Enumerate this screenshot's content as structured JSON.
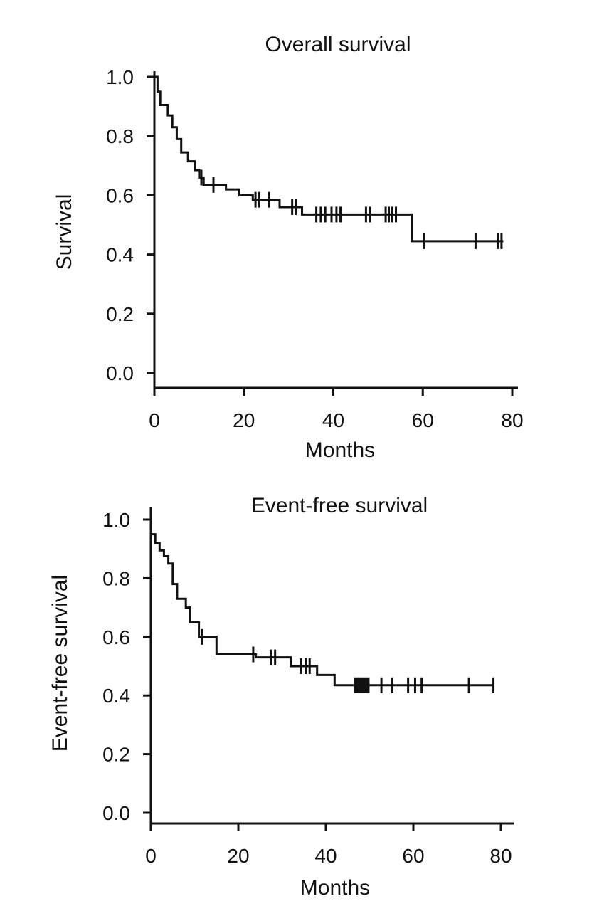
{
  "chart_data": [
    {
      "type": "line",
      "title": "Overall survival",
      "xlabel": "Months",
      "ylabel": "Survival",
      "xlim": [
        0,
        80
      ],
      "ylim": [
        0,
        1.0
      ],
      "xticks": [
        "0",
        "20",
        "40",
        "60",
        "80"
      ],
      "yticks": [
        "0.0",
        "0.2",
        "0.4",
        "0.6",
        "0.8",
        "1.0"
      ],
      "grid": false,
      "series": [
        {
          "name": "Overall survival",
          "step_times": [
            0,
            0.7,
            1.3,
            3,
            4,
            5,
            6,
            7.5,
            9,
            10,
            11,
            16,
            19,
            22,
            28,
            33,
            57.5,
            78
          ],
          "step_values": [
            1.0,
            0.95,
            0.905,
            0.87,
            0.83,
            0.79,
            0.745,
            0.715,
            0.685,
            0.66,
            0.635,
            0.62,
            0.6,
            0.585,
            0.56,
            0.535,
            0.445,
            0.445
          ],
          "censored": [
            10.5,
            13.2,
            22.6,
            23.4,
            25.6,
            30.8,
            31.6,
            36.2,
            37.2,
            38.2,
            39.6,
            40.7,
            41.6,
            47.3,
            48.2,
            51.7,
            52.4,
            53.2,
            54,
            60.2,
            71.8,
            76.8,
            77.6
          ]
        }
      ]
    },
    {
      "type": "line",
      "title": "Event-free survival",
      "xlabel": "Months",
      "ylabel": "Event-free survival",
      "xlim": [
        0,
        80
      ],
      "ylim": [
        0,
        1.0
      ],
      "xticks": [
        "0",
        "20",
        "40",
        "60",
        "80"
      ],
      "yticks": [
        "0.0",
        "0.2",
        "0.4",
        "0.6",
        "0.8",
        "1.0"
      ],
      "grid": false,
      "series": [
        {
          "name": "Event-free survival",
          "step_times": [
            0,
            1,
            2,
            3,
            4,
            5,
            6,
            8,
            9,
            11,
            15,
            24,
            32,
            38,
            42,
            78
          ],
          "step_values": [
            0.95,
            0.92,
            0.895,
            0.875,
            0.85,
            0.78,
            0.73,
            0.7,
            0.65,
            0.6,
            0.54,
            0.53,
            0.5,
            0.47,
            0.435,
            0.435
          ],
          "censored": [
            11.7,
            23.4,
            27.4,
            28.4,
            34.3,
            35.4,
            36.3,
            52.7,
            55.2,
            58.8,
            60.4,
            61.9,
            72.7,
            78.3
          ],
          "marker_square": 48.2
        }
      ]
    }
  ]
}
